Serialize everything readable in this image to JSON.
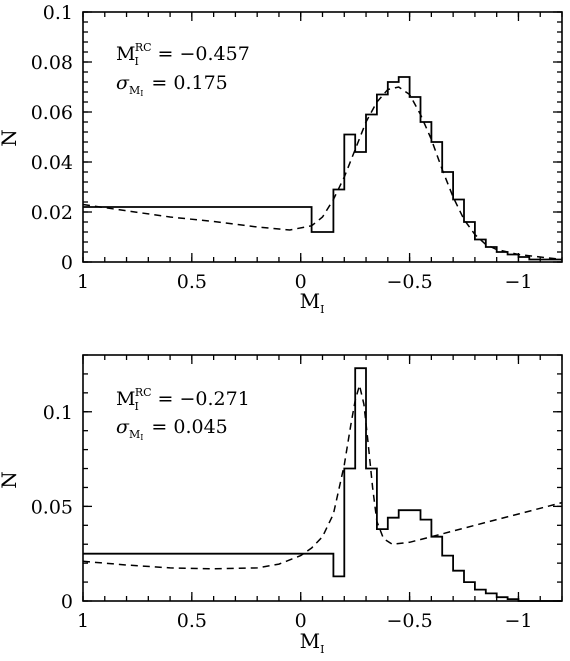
{
  "chart_data": [
    {
      "type": "line",
      "xlabel": "M",
      "xlabel_sub": "I",
      "ylabel": "N",
      "xlim": [
        1.0,
        -1.2
      ],
      "ylim": [
        0,
        0.1
      ],
      "x_ticks": [
        1,
        0.5,
        0,
        -0.5,
        -1
      ],
      "x_tick_labels": [
        "1",
        "0.5",
        "0",
        "−0.5",
        "−1"
      ],
      "y_ticks": [
        0,
        0.02,
        0.04,
        0.06,
        0.08,
        0.1
      ],
      "y_tick_labels": [
        "0",
        "0.02",
        "0.04",
        "0.06",
        "0.08",
        "0.1"
      ],
      "annotations": {
        "mag_label": "M",
        "mag_sub": "I",
        "mag_sup": "RC",
        "mag_value": "= −0.457",
        "sigma_label": "σ",
        "sigma_sub": "M",
        "sigma_subsub": "I",
        "sigma_value": "= 0.175"
      },
      "series": [
        {
          "style": "histogram",
          "x": [
            1.0,
            -0.05,
            -0.15,
            -0.2,
            -0.25,
            -0.3,
            -0.35,
            -0.4,
            -0.45,
            -0.5,
            -0.55,
            -0.6,
            -0.65,
            -0.7,
            -0.75,
            -0.8,
            -0.85,
            -0.9,
            -0.95,
            -1.0,
            -1.05,
            -1.1,
            -1.2
          ],
          "y": [
            0.022,
            0.012,
            0.029,
            0.051,
            0.044,
            0.059,
            0.067,
            0.072,
            0.074,
            0.066,
            0.056,
            0.048,
            0.036,
            0.025,
            0.016,
            0.009,
            0.006,
            0.004,
            0.003,
            0.002,
            0.001,
            0.001,
            0.001
          ]
        },
        {
          "style": "dashed",
          "x": [
            1.0,
            0.8,
            0.6,
            0.4,
            0.2,
            0.05,
            -0.05,
            -0.1,
            -0.15,
            -0.2,
            -0.25,
            -0.3,
            -0.35,
            -0.4,
            -0.45,
            -0.5,
            -0.55,
            -0.6,
            -0.65,
            -0.7,
            -0.75,
            -0.8,
            -0.85,
            -0.9,
            -0.95,
            -1.0,
            -1.1,
            -1.2
          ],
          "y": [
            0.023,
            0.0205,
            0.018,
            0.0162,
            0.014,
            0.0128,
            0.0145,
            0.018,
            0.025,
            0.034,
            0.045,
            0.056,
            0.064,
            0.069,
            0.07,
            0.067,
            0.059,
            0.049,
            0.037,
            0.026,
            0.017,
            0.011,
            0.007,
            0.005,
            0.004,
            0.003,
            0.002,
            0.001
          ]
        }
      ]
    },
    {
      "type": "line",
      "xlabel": "M",
      "xlabel_sub": "I",
      "ylabel": "N",
      "xlim": [
        1.0,
        -1.2
      ],
      "ylim": [
        0,
        0.13
      ],
      "x_ticks": [
        1,
        0.5,
        0,
        -0.5,
        -1
      ],
      "x_tick_labels": [
        "1",
        "0.5",
        "0",
        "−0.5",
        "−1"
      ],
      "y_ticks": [
        0,
        0.05,
        0.1
      ],
      "y_tick_labels": [
        "0",
        "0.05",
        "0.1"
      ],
      "annotations": {
        "mag_label": "M",
        "mag_sub": "I",
        "mag_sup": "RC",
        "mag_value": "= −0.271",
        "sigma_label": "σ",
        "sigma_sub": "M",
        "sigma_subsub": "I",
        "sigma_value": "= 0.045"
      },
      "series": [
        {
          "style": "histogram",
          "x": [
            1.0,
            -0.15,
            -0.2,
            -0.25,
            -0.3,
            -0.35,
            -0.4,
            -0.45,
            -0.5,
            -0.55,
            -0.6,
            -0.65,
            -0.7,
            -0.75,
            -0.8,
            -0.85,
            -0.9,
            -0.95,
            -1.0,
            -1.2
          ],
          "y": [
            0.025,
            0.013,
            0.07,
            0.123,
            0.07,
            0.038,
            0.044,
            0.048,
            0.048,
            0.043,
            0.034,
            0.024,
            0.016,
            0.01,
            0.006,
            0.004,
            0.002,
            0.001,
            0.0,
            0.0
          ]
        },
        {
          "style": "dashed",
          "x": [
            1.0,
            0.8,
            0.6,
            0.4,
            0.2,
            0.1,
            0.0,
            -0.05,
            -0.1,
            -0.15,
            -0.2,
            -0.23,
            -0.25,
            -0.27,
            -0.29,
            -0.31,
            -0.33,
            -0.35,
            -0.38,
            -0.42,
            -0.5,
            -0.6,
            -0.7,
            -0.8,
            -0.9,
            -1.0,
            -1.1,
            -1.2
          ],
          "y": [
            0.021,
            0.019,
            0.0175,
            0.017,
            0.0175,
            0.0195,
            0.024,
            0.028,
            0.034,
            0.046,
            0.072,
            0.093,
            0.106,
            0.114,
            0.104,
            0.083,
            0.06,
            0.042,
            0.033,
            0.03,
            0.031,
            0.034,
            0.037,
            0.04,
            0.043,
            0.046,
            0.049,
            0.052
          ]
        }
      ]
    }
  ]
}
